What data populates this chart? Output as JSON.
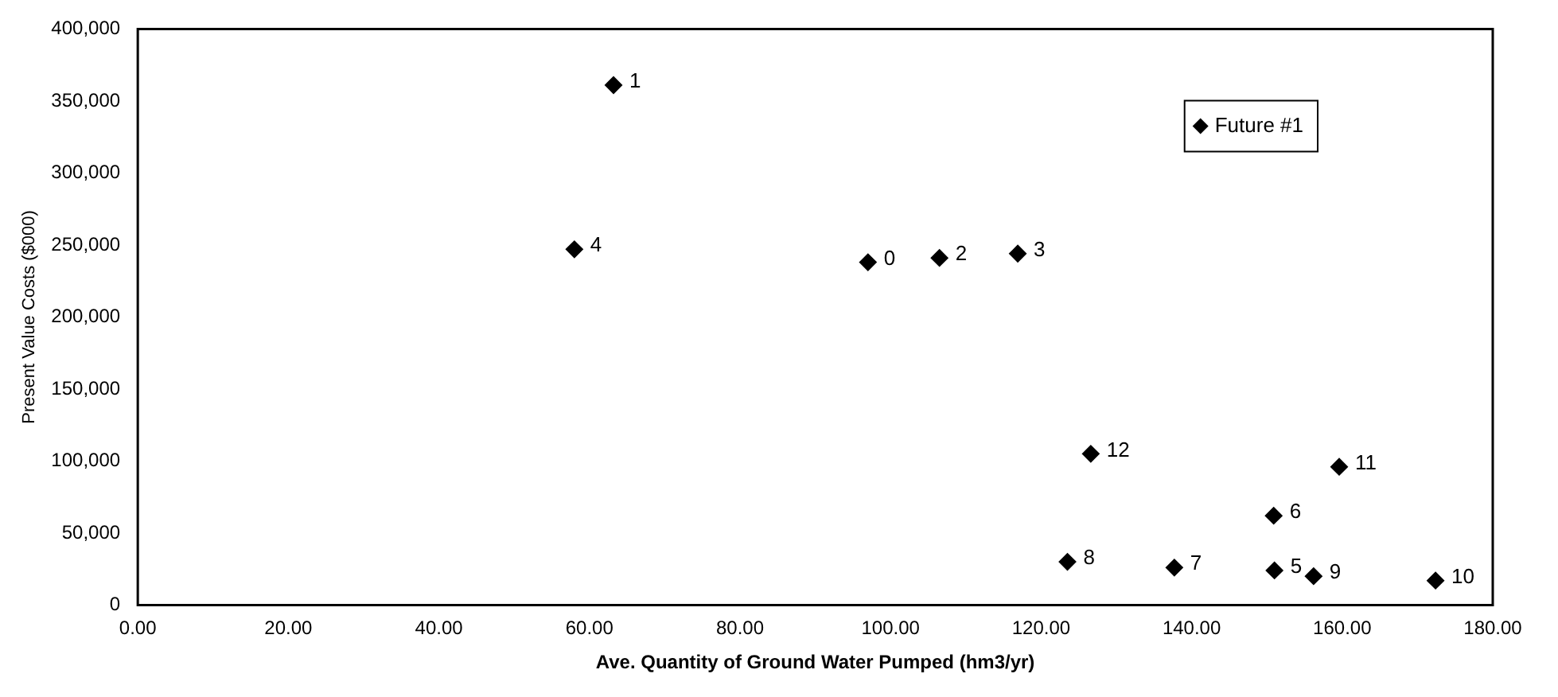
{
  "chart_data": {
    "type": "scatter",
    "xlabel": "Ave. Quantity of Ground Water Pumped (hm3/yr)",
    "ylabel": "Present Value Costs ($000)",
    "series": [
      {
        "name": "Future #1",
        "color": "#000000",
        "x": [
          97.0,
          63.2,
          106.5,
          116.9,
          58.0,
          151.0,
          150.9,
          137.7,
          123.5,
          156.2,
          172.4,
          159.6,
          126.6
        ],
        "values": [
          238000,
          361000,
          241000,
          244000,
          247000,
          24000,
          62000,
          26000,
          30000,
          20000,
          17000,
          96000,
          105000
        ]
      }
    ],
    "xlim": [
      0,
      180
    ],
    "ylim": [
      0,
      400000
    ],
    "xticks": [
      {
        "value": 0,
        "label": "0.00"
      },
      {
        "value": 20,
        "label": "20.00"
      },
      {
        "value": 40,
        "label": "40.00"
      },
      {
        "value": 60,
        "label": "60.00"
      },
      {
        "value": 80,
        "label": "80.00"
      },
      {
        "value": 100,
        "label": "100.00"
      },
      {
        "value": 120,
        "label": "120.00"
      },
      {
        "value": 140,
        "label": "140.00"
      },
      {
        "value": 160,
        "label": "160.00"
      },
      {
        "value": 180,
        "label": "180.00"
      }
    ],
    "yticks": [
      0,
      {
        "value": 50000,
        "label": "50,000"
      },
      {
        "value": 100000,
        "label": "100,000"
      },
      {
        "value": 150000,
        "label": "150,000"
      },
      {
        "value": 200000,
        "label": "200,000"
      },
      {
        "value": 250000,
        "label": "250,000"
      },
      {
        "value": 300000,
        "label": "300,000"
      },
      {
        "value": 350000,
        "label": "350,000"
      },
      {
        "value": 400000,
        "label": "400,000"
      }
    ],
    "annotations": [
      {
        "text": "0",
        "x": 97.0,
        "y": 238000
      },
      {
        "text": "1",
        "x": 63.2,
        "y": 361000
      },
      {
        "text": "2",
        "x": 106.5,
        "y": 241000
      },
      {
        "text": "3",
        "x": 116.9,
        "y": 244000
      },
      {
        "text": "4",
        "x": 58.0,
        "y": 247000
      },
      {
        "text": "5",
        "x": 151.0,
        "y": 24000
      },
      {
        "text": "6",
        "x": 150.9,
        "y": 62000
      },
      {
        "text": "7",
        "x": 137.7,
        "y": 26000
      },
      {
        "text": "8",
        "x": 123.5,
        "y": 30000
      },
      {
        "text": "9",
        "x": 156.2,
        "y": 20000
      },
      {
        "text": "10",
        "x": 172.4,
        "y": 17000
      },
      {
        "text": "11",
        "x": 159.6,
        "y": 96000
      },
      {
        "text": "12",
        "x": 126.6,
        "y": 105000
      }
    ],
    "grid": false,
    "legend": "top right",
    "marker": "diamond"
  }
}
